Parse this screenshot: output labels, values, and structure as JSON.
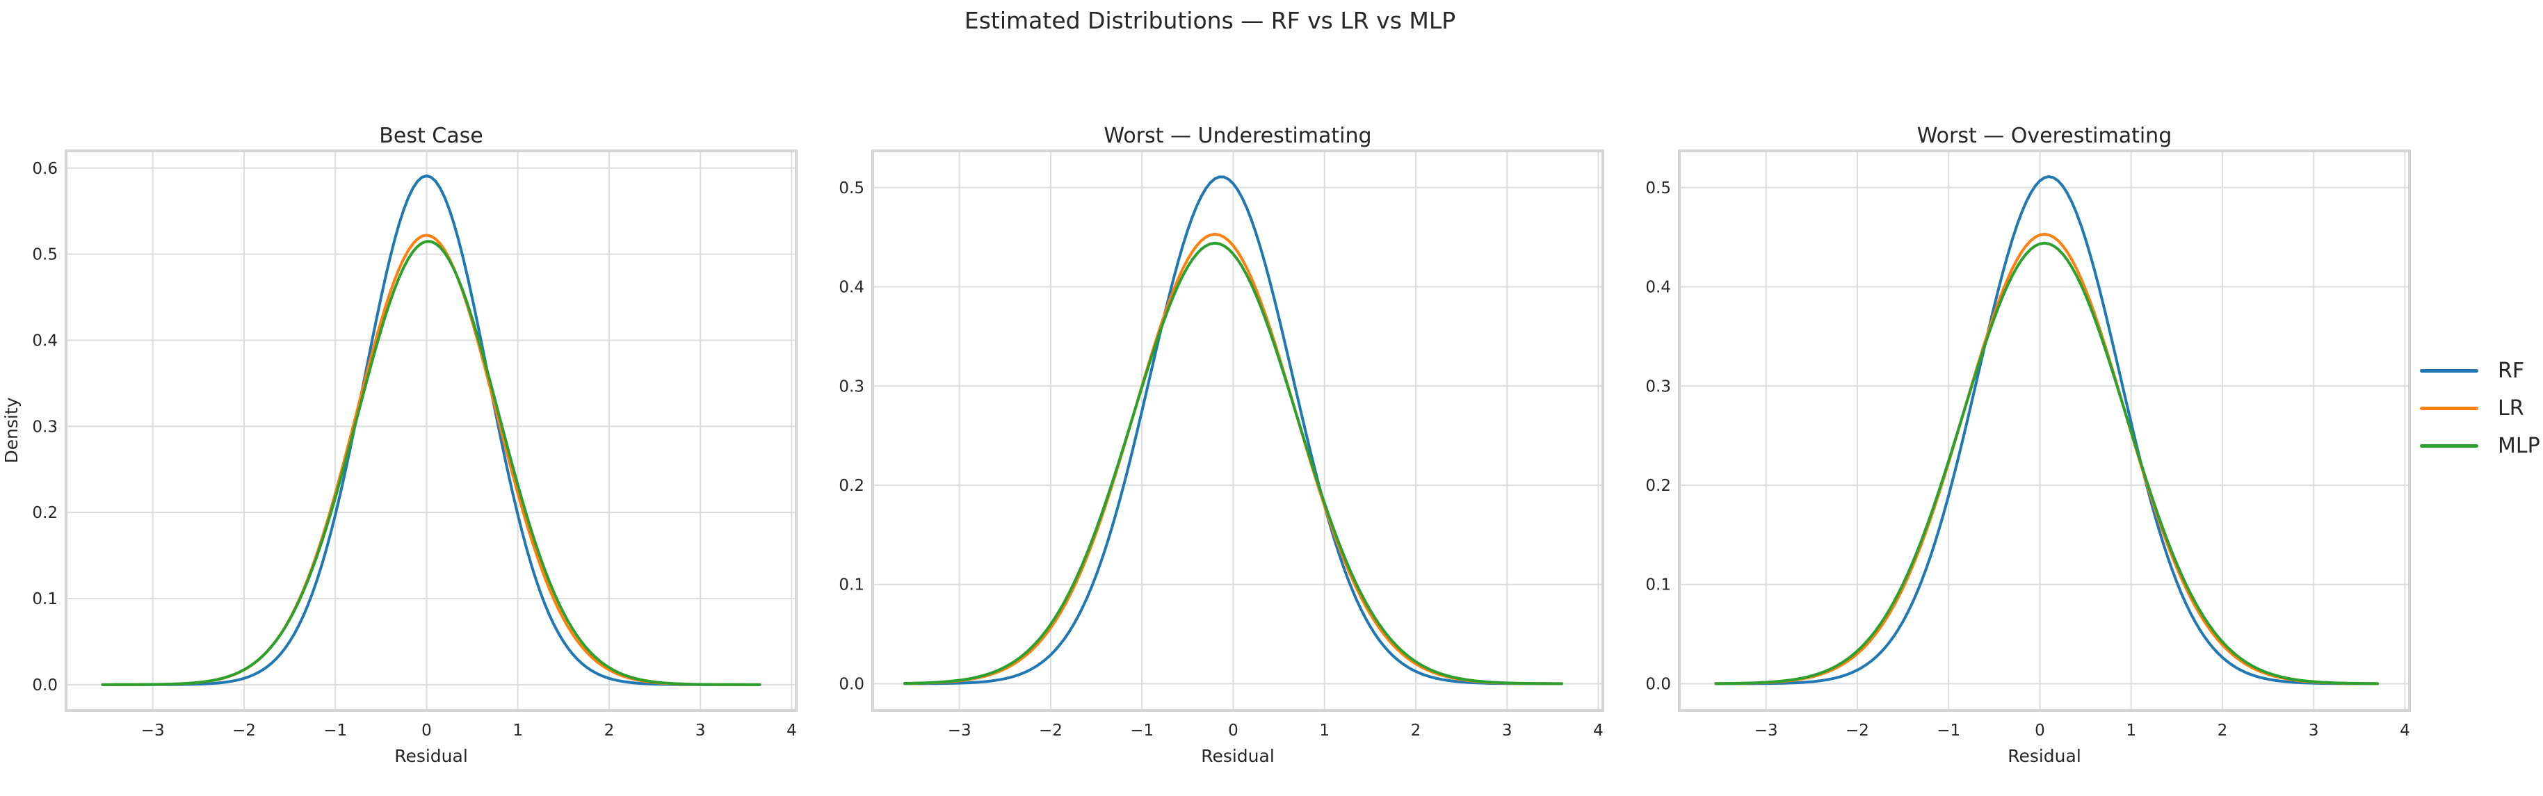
{
  "figure": {
    "background": "#ffffff",
    "text_color": "#262626",
    "grid_color": "#dcdcdc",
    "spine_color": "#d4d4d4"
  },
  "legend": {
    "position": "center right",
    "items": [
      {
        "label": "RF",
        "color": "#1f77b4"
      },
      {
        "label": "LR",
        "color": "#ff7f0e"
      },
      {
        "label": "MLP",
        "color": "#2ca02c"
      }
    ]
  },
  "chart_data": {
    "type": "line",
    "suptitle": "Estimated Distributions — RF vs LR vs MLP",
    "grid": true,
    "legend_position": "center right",
    "panels": [
      {
        "title": "Best Case",
        "xlabel": "Residual",
        "ylabel": "Density",
        "xlim": [
          -3.95,
          4.05
        ],
        "ylim": [
          -0.03,
          0.62
        ],
        "xticks": [
          -3,
          -2,
          -1,
          0,
          1,
          2,
          3,
          4
        ],
        "xtick_labels": [
          "−3",
          "−2",
          "−1",
          "0",
          "1",
          "2",
          "3",
          "4"
        ],
        "yticks": [
          0.0,
          0.1,
          0.2,
          0.3,
          0.4,
          0.5,
          0.6
        ],
        "ytick_labels": [
          "0.0",
          "0.1",
          "0.2",
          "0.3",
          "0.4",
          "0.5",
          "0.6"
        ],
        "curve_x_range": [
          -3.55,
          3.65
        ],
        "series": [
          {
            "name": "RF",
            "color": "#1f77b4",
            "shape": "gaussian",
            "mean": 0.0,
            "std": 0.675,
            "peak_density": 0.591
          },
          {
            "name": "LR",
            "color": "#ff7f0e",
            "shape": "gaussian",
            "mean": 0.0,
            "std": 0.765,
            "peak_density": 0.522
          },
          {
            "name": "MLP",
            "color": "#2ca02c",
            "shape": "gaussian",
            "mean": 0.02,
            "std": 0.776,
            "peak_density": 0.515
          }
        ]
      },
      {
        "title": "Worst — Underestimating",
        "xlabel": "Residual",
        "ylabel": "",
        "xlim": [
          -3.95,
          4.05
        ],
        "ylim": [
          -0.027,
          0.537
        ],
        "xticks": [
          -3,
          -2,
          -1,
          0,
          1,
          2,
          3,
          4
        ],
        "xtick_labels": [
          "−3",
          "−2",
          "−1",
          "0",
          "1",
          "2",
          "3",
          "4"
        ],
        "yticks": [
          0.0,
          0.1,
          0.2,
          0.3,
          0.4,
          0.5
        ],
        "ytick_labels": [
          "0.0",
          "0.1",
          "0.2",
          "0.3",
          "0.4",
          "0.5"
        ],
        "curve_x_range": [
          -3.6,
          3.6
        ],
        "series": [
          {
            "name": "RF",
            "color": "#1f77b4",
            "shape": "gaussian",
            "mean": -0.13,
            "std": 0.781,
            "peak_density": 0.511
          },
          {
            "name": "LR",
            "color": "#ff7f0e",
            "shape": "gaussian",
            "mean": -0.2,
            "std": 0.881,
            "peak_density": 0.453
          },
          {
            "name": "MLP",
            "color": "#2ca02c",
            "shape": "gaussian",
            "mean": -0.2,
            "std": 0.899,
            "peak_density": 0.444
          }
        ]
      },
      {
        "title": "Worst — Overestimating",
        "xlabel": "Residual",
        "ylabel": "",
        "xlim": [
          -3.95,
          4.05
        ],
        "ylim": [
          -0.027,
          0.537
        ],
        "xticks": [
          -3,
          -2,
          -1,
          0,
          1,
          2,
          3,
          4
        ],
        "xtick_labels": [
          "−3",
          "−2",
          "−1",
          "0",
          "1",
          "2",
          "3",
          "4"
        ],
        "yticks": [
          0.0,
          0.1,
          0.2,
          0.3,
          0.4,
          0.5
        ],
        "ytick_labels": [
          "0.0",
          "0.1",
          "0.2",
          "0.3",
          "0.4",
          "0.5"
        ],
        "curve_x_range": [
          -3.55,
          3.7
        ],
        "series": [
          {
            "name": "RF",
            "color": "#1f77b4",
            "shape": "gaussian",
            "mean": 0.1,
            "std": 0.781,
            "peak_density": 0.511
          },
          {
            "name": "LR",
            "color": "#ff7f0e",
            "shape": "gaussian",
            "mean": 0.05,
            "std": 0.881,
            "peak_density": 0.453
          },
          {
            "name": "MLP",
            "color": "#2ca02c",
            "shape": "gaussian",
            "mean": 0.05,
            "std": 0.899,
            "peak_density": 0.444
          }
        ]
      }
    ]
  }
}
